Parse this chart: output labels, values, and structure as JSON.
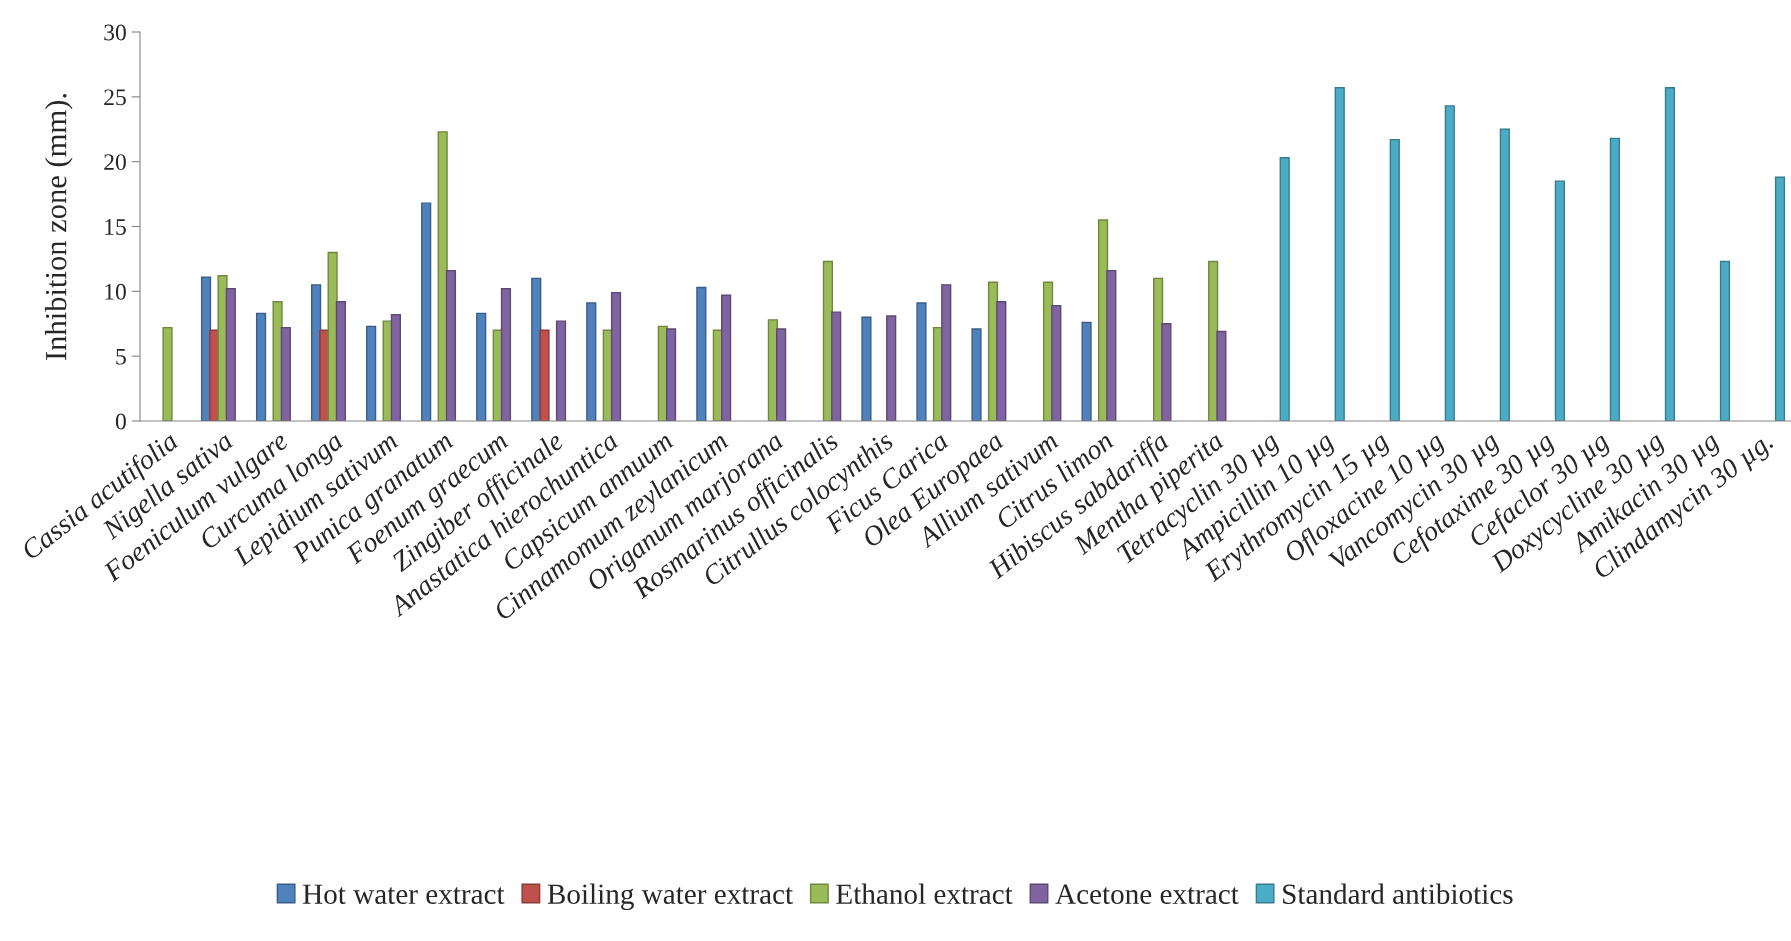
{
  "chart_data": {
    "type": "bar",
    "ylabel": "Inhibition zone (mm).",
    "categories": [
      "Cassia acutifolia",
      "Nigella sativa",
      "Foeniculum vulgare",
      "Curcuma longa",
      "Lepidium sativum",
      "Punica granatum",
      "Foenum graecum",
      "Zingiber officinale",
      "Anastatica hierochuntica",
      "Capsicum annuum",
      "Cinnamomum zeylanicum",
      "Origanum marjorana",
      "Rosmarinus officinalis",
      "Citrullus colocynthis",
      "Ficus Carica",
      "Olea Europaea",
      "Allium sativum",
      "Citrus limon",
      "Hibiscus sabdariffa",
      "Mentha piperita",
      "Tetracyclin 30 µg",
      "Ampicillin 10 µg",
      "Erythromycin 15 µg",
      "Ofloxacine 10 µg",
      "Vancomycin 30 µg",
      "Cefotaxime 30 µg",
      "Cefaclor 30 µg",
      "Doxycycline 30 µg",
      "Amikacin 30 µg",
      "Clindamycin 30 µg."
    ],
    "series": [
      {
        "name": "Hot water extract",
        "color": "#4f81bd",
        "values": [
          null,
          11.1,
          8.3,
          10.5,
          7.3,
          16.8,
          8.3,
          11.0,
          9.1,
          null,
          10.3,
          null,
          null,
          8.0,
          9.1,
          7.1,
          null,
          7.6,
          null,
          null,
          null,
          null,
          null,
          null,
          null,
          null,
          null,
          null,
          null,
          null
        ]
      },
      {
        "name": "Boiling water extract",
        "color": "#c0504d",
        "values": [
          null,
          7.0,
          null,
          7.0,
          null,
          null,
          null,
          7.0,
          null,
          null,
          null,
          null,
          null,
          null,
          null,
          null,
          null,
          null,
          null,
          null,
          null,
          null,
          null,
          null,
          null,
          null,
          null,
          null,
          null,
          null
        ]
      },
      {
        "name": "Ethanol extract",
        "color": "#9bbb59",
        "values": [
          7.2,
          11.2,
          9.2,
          13.0,
          7.7,
          22.3,
          7.0,
          null,
          7.0,
          7.3,
          7.0,
          7.8,
          12.3,
          null,
          7.2,
          10.7,
          10.7,
          15.5,
          11.0,
          12.3,
          null,
          null,
          null,
          null,
          null,
          null,
          null,
          null,
          null,
          null
        ]
      },
      {
        "name": "Acetone extract",
        "color": "#8064a2",
        "values": [
          null,
          10.2,
          7.2,
          9.2,
          8.2,
          11.6,
          10.2,
          7.7,
          9.9,
          7.1,
          9.7,
          7.1,
          8.4,
          8.1,
          10.5,
          9.2,
          8.9,
          11.6,
          7.5,
          6.9,
          null,
          null,
          null,
          null,
          null,
          null,
          null,
          null,
          null,
          null
        ]
      },
      {
        "name": "Standard antibiotics",
        "color": "#4bacc6",
        "values": [
          null,
          null,
          null,
          null,
          null,
          null,
          null,
          null,
          null,
          null,
          null,
          null,
          null,
          null,
          null,
          null,
          null,
          null,
          null,
          null,
          20.3,
          25.7,
          21.7,
          24.3,
          22.5,
          18.5,
          21.8,
          25.7,
          12.3,
          18.8
        ]
      }
    ],
    "ylim": [
      0,
      30
    ],
    "yticks": [
      0,
      5,
      10,
      15,
      20,
      25,
      30
    ],
    "grid": false,
    "legend": "bottom"
  }
}
